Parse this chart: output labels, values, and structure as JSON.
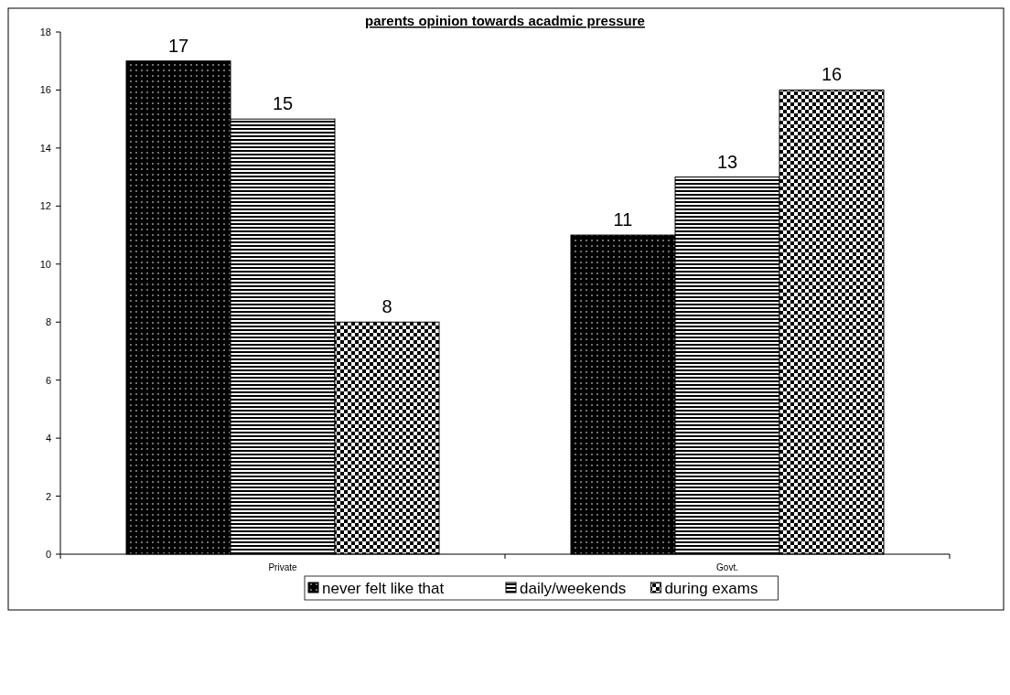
{
  "chart_data": {
    "type": "bar",
    "title": "parents opinion towards acadmic pressure",
    "categories": [
      "Private",
      "Govt."
    ],
    "series": [
      {
        "name": "never felt like that",
        "color": "#000000",
        "values": [
          17,
          11
        ]
      },
      {
        "name": "daily/weekends",
        "color": "#000000",
        "values": [
          15,
          13
        ]
      },
      {
        "name": "during exams",
        "color": "#000000",
        "values": [
          8,
          16
        ]
      }
    ],
    "ylim": [
      0,
      18
    ],
    "yticks": [
      0,
      2,
      4,
      6,
      8,
      10,
      12,
      14,
      16,
      18
    ],
    "data_labels": true,
    "legend": "bottom",
    "grid": false
  }
}
